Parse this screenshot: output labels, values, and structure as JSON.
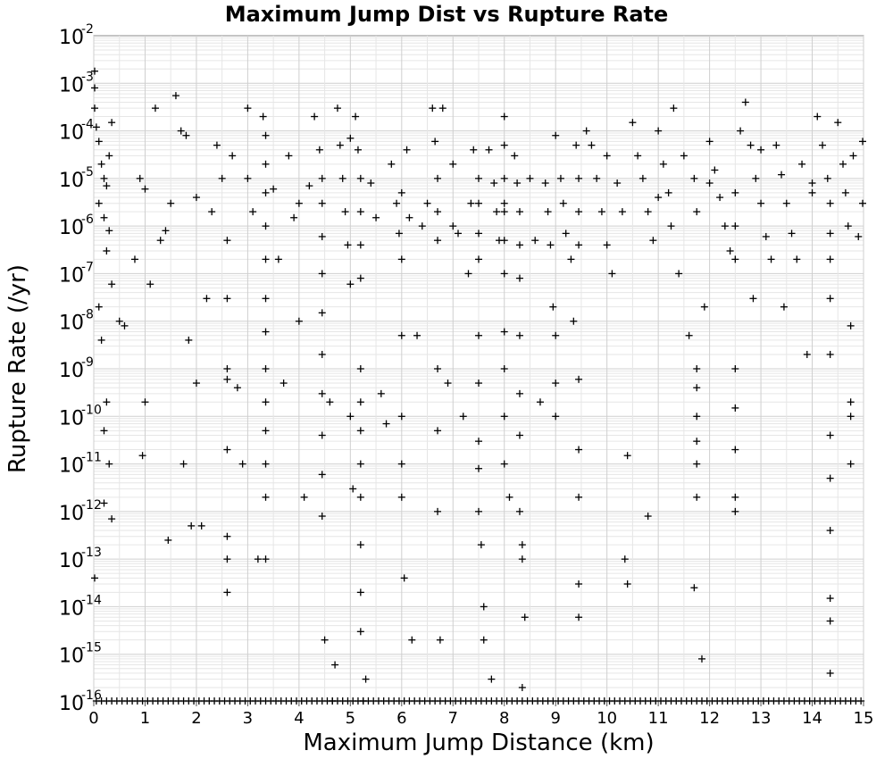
{
  "chart_data": {
    "type": "scatter",
    "title": "Maximum Jump Dist vs Rupture Rate",
    "xlabel": "Maximum Jump Distance (km)",
    "ylabel": "Rupture Rate (/yr)",
    "xlim": [
      0,
      15
    ],
    "ylim": [
      1e-16,
      0.01
    ],
    "y_scale": "log",
    "grid": true,
    "legend": "none",
    "marker": "plus",
    "marker_color": "#000000",
    "x_ticks": [
      "0",
      "1",
      "2",
      "3",
      "4",
      "5",
      "6",
      "7",
      "8",
      "9",
      "10",
      "11",
      "12",
      "13",
      "14",
      "15"
    ],
    "y_ticks": [
      {
        "base": "10",
        "exp": "-2"
      },
      {
        "base": "10",
        "exp": "-3"
      },
      {
        "base": "10",
        "exp": "-4"
      },
      {
        "base": "10",
        "exp": "-5"
      },
      {
        "base": "10",
        "exp": "-6"
      },
      {
        "base": "10",
        "exp": "-7"
      },
      {
        "base": "10",
        "exp": "-8"
      },
      {
        "base": "10",
        "exp": "-9"
      },
      {
        "base": "10",
        "exp": "-10"
      },
      {
        "base": "10",
        "exp": "-11"
      },
      {
        "base": "10",
        "exp": "-12"
      },
      {
        "base": "10",
        "exp": "-13"
      },
      {
        "base": "10",
        "exp": "-14"
      },
      {
        "base": "10",
        "exp": "-15"
      },
      {
        "base": "10",
        "exp": "-16"
      }
    ],
    "points": [
      [
        0.0,
        0.0018
      ],
      [
        0.0,
        0.0008
      ],
      [
        0.0,
        0.0003
      ],
      [
        0.05,
        0.00012
      ],
      [
        0.1,
        6e-05
      ],
      [
        0.15,
        2e-05
      ],
      [
        0.2,
        1e-05
      ],
      [
        0.25,
        7e-06
      ],
      [
        0.3,
        3e-05
      ],
      [
        0.35,
        0.00015
      ],
      [
        0.1,
        3e-06
      ],
      [
        0.2,
        1.5e-06
      ],
      [
        0.3,
        8e-07
      ],
      [
        0.25,
        3e-07
      ],
      [
        0.35,
        6e-08
      ],
      [
        0.1,
        2e-08
      ],
      [
        0.15,
        4e-09
      ],
      [
        0.25,
        2e-10
      ],
      [
        0.2,
        5e-11
      ],
      [
        0.3,
        1e-11
      ],
      [
        0.2,
        1.5e-12
      ],
      [
        0.35,
        7e-13
      ],
      [
        0.0,
        4e-14
      ],
      [
        0.5,
        1e-08
      ],
      [
        0.6,
        8e-09
      ],
      [
        0.8,
        2e-07
      ],
      [
        0.9,
        1e-05
      ],
      [
        1.0,
        2e-10
      ],
      [
        0.95,
        1.5e-11
      ],
      [
        1.1,
        6e-08
      ],
      [
        1.2,
        0.0003
      ],
      [
        1.3,
        5e-07
      ],
      [
        1.4,
        8e-07
      ],
      [
        1.5,
        3e-06
      ],
      [
        1.45,
        2.5e-13
      ],
      [
        1.6,
        0.00055
      ],
      [
        1.7,
        0.0001
      ],
      [
        1.8,
        8e-05
      ],
      [
        1.75,
        1e-11
      ],
      [
        1.85,
        4e-09
      ],
      [
        1.9,
        5e-13
      ],
      [
        2.0,
        5e-10
      ],
      [
        2.1,
        5e-13
      ],
      [
        2.2,
        3e-08
      ],
      [
        2.3,
        2e-06
      ],
      [
        2.4,
        5e-05
      ],
      [
        2.5,
        1e-05
      ],
      [
        2.6,
        5e-07
      ],
      [
        2.6,
        3e-08
      ],
      [
        2.6,
        1e-09
      ],
      [
        2.6,
        6e-10
      ],
      [
        2.6,
        2e-11
      ],
      [
        2.6,
        3e-13
      ],
      [
        2.6,
        1e-13
      ],
      [
        2.6,
        2e-14
      ],
      [
        2.7,
        3e-05
      ],
      [
        2.8,
        4e-10
      ],
      [
        2.9,
        1e-11
      ],
      [
        3.0,
        0.0003
      ],
      [
        3.1,
        2e-06
      ],
      [
        3.2,
        1e-13
      ],
      [
        3.3,
        0.0002
      ],
      [
        3.35,
        8e-05
      ],
      [
        3.35,
        2e-05
      ],
      [
        3.35,
        5e-06
      ],
      [
        3.35,
        1e-06
      ],
      [
        3.35,
        2e-07
      ],
      [
        3.35,
        3e-08
      ],
      [
        3.35,
        6e-09
      ],
      [
        3.35,
        1e-09
      ],
      [
        3.35,
        2e-10
      ],
      [
        3.35,
        5e-11
      ],
      [
        3.35,
        1e-11
      ],
      [
        3.35,
        2e-12
      ],
      [
        3.35,
        1e-13
      ],
      [
        3.5,
        6e-06
      ],
      [
        3.6,
        2e-07
      ],
      [
        3.7,
        5e-10
      ],
      [
        3.8,
        3e-05
      ],
      [
        3.9,
        1.5e-06
      ],
      [
        4.0,
        1e-08
      ],
      [
        4.1,
        2e-12
      ],
      [
        4.2,
        7e-06
      ],
      [
        4.3,
        0.0002
      ],
      [
        4.4,
        4e-05
      ],
      [
        4.45,
        1e-05
      ],
      [
        4.45,
        3e-06
      ],
      [
        4.45,
        6e-07
      ],
      [
        4.45,
        1e-07
      ],
      [
        4.45,
        1.5e-08
      ],
      [
        4.45,
        2e-09
      ],
      [
        4.45,
        3e-10
      ],
      [
        4.45,
        4e-11
      ],
      [
        4.45,
        6e-12
      ],
      [
        4.45,
        8e-13
      ],
      [
        4.5,
        2e-15
      ],
      [
        4.6,
        2e-10
      ],
      [
        4.65,
        1e-16
      ],
      [
        4.7,
        6e-16
      ],
      [
        4.75,
        0.0003
      ],
      [
        4.8,
        5e-05
      ],
      [
        4.85,
        1e-05
      ],
      [
        4.9,
        2e-06
      ],
      [
        4.95,
        4e-07
      ],
      [
        5.0,
        6e-08
      ],
      [
        5.0,
        1e-10
      ],
      [
        5.05,
        3e-12
      ],
      [
        5.1,
        0.0002
      ],
      [
        5.15,
        4e-05
      ],
      [
        5.2,
        1e-05
      ],
      [
        5.2,
        2e-06
      ],
      [
        5.2,
        4e-07
      ],
      [
        5.2,
        8e-08
      ],
      [
        5.2,
        1e-09
      ],
      [
        5.2,
        2e-10
      ],
      [
        5.2,
        5e-11
      ],
      [
        5.2,
        1e-11
      ],
      [
        5.2,
        2e-12
      ],
      [
        5.2,
        2e-13
      ],
      [
        5.2,
        2e-14
      ],
      [
        5.2,
        3e-15
      ],
      [
        5.25,
        1e-16
      ],
      [
        5.3,
        3e-16
      ],
      [
        5.4,
        8e-06
      ],
      [
        5.5,
        1.5e-06
      ],
      [
        5.6,
        3e-10
      ],
      [
        5.7,
        7e-11
      ],
      [
        5.8,
        2e-05
      ],
      [
        5.9,
        3e-06
      ],
      [
        5.95,
        7e-07
      ],
      [
        6.0,
        2e-07
      ],
      [
        6.0,
        5e-09
      ],
      [
        6.0,
        1e-10
      ],
      [
        6.0,
        1e-11
      ],
      [
        6.0,
        2e-12
      ],
      [
        6.05,
        4e-14
      ],
      [
        6.1,
        4e-05
      ],
      [
        6.15,
        1.5e-06
      ],
      [
        6.2,
        2e-15
      ],
      [
        6.3,
        5e-09
      ],
      [
        6.4,
        1e-06
      ],
      [
        6.5,
        3e-06
      ],
      [
        6.6,
        0.0003
      ],
      [
        6.65,
        6e-05
      ],
      [
        6.7,
        1e-05
      ],
      [
        6.7,
        2e-06
      ],
      [
        6.7,
        5e-07
      ],
      [
        6.7,
        1e-09
      ],
      [
        6.7,
        5e-11
      ],
      [
        6.7,
        1e-12
      ],
      [
        6.75,
        2e-15
      ],
      [
        6.8,
        0.0003
      ],
      [
        6.9,
        5e-10
      ],
      [
        7.0,
        2e-05
      ],
      [
        7.1,
        7e-07
      ],
      [
        7.2,
        1e-10
      ],
      [
        7.3,
        1e-07
      ],
      [
        7.35,
        3e-06
      ],
      [
        7.4,
        4e-05
      ],
      [
        7.5,
        1e-05
      ],
      [
        7.5,
        3e-06
      ],
      [
        7.5,
        7e-07
      ],
      [
        7.5,
        2e-07
      ],
      [
        7.5,
        5e-09
      ],
      [
        7.5,
        5e-10
      ],
      [
        7.5,
        3e-11
      ],
      [
        7.5,
        8e-12
      ],
      [
        7.5,
        1e-12
      ],
      [
        7.55,
        2e-13
      ],
      [
        7.6,
        1e-14
      ],
      [
        7.6,
        2e-15
      ],
      [
        7.7,
        4e-05
      ],
      [
        7.75,
        3e-16
      ],
      [
        7.8,
        8e-06
      ],
      [
        7.85,
        2e-06
      ],
      [
        7.9,
        5e-07
      ],
      [
        8.0,
        0.0002
      ],
      [
        8.0,
        5e-05
      ],
      [
        8.0,
        1e-05
      ],
      [
        8.0,
        2e-06
      ],
      [
        8.0,
        5e-07
      ],
      [
        8.0,
        1e-07
      ],
      [
        8.0,
        6e-09
      ],
      [
        8.0,
        1e-09
      ],
      [
        8.0,
        1e-10
      ],
      [
        8.0,
        1e-11
      ],
      [
        8.1,
        2e-12
      ],
      [
        8.2,
        3e-05
      ],
      [
        8.25,
        8e-06
      ],
      [
        8.3,
        2e-06
      ],
      [
        8.3,
        4e-07
      ],
      [
        8.3,
        8e-08
      ],
      [
        8.3,
        5e-09
      ],
      [
        8.3,
        3e-10
      ],
      [
        8.3,
        4e-11
      ],
      [
        8.3,
        1e-12
      ],
      [
        8.35,
        2e-13
      ],
      [
        8.35,
        1e-13
      ],
      [
        8.35,
        2e-16
      ],
      [
        8.4,
        6e-15
      ],
      [
        8.5,
        1e-05
      ],
      [
        8.6,
        5e-07
      ],
      [
        8.7,
        2e-10
      ],
      [
        8.8,
        8e-06
      ],
      [
        8.85,
        2e-06
      ],
      [
        8.9,
        4e-07
      ],
      [
        8.95,
        2e-08
      ],
      [
        9.0,
        5e-09
      ],
      [
        9.0,
        5e-10
      ],
      [
        9.0,
        1e-10
      ],
      [
        9.1,
        1e-05
      ],
      [
        9.15,
        3e-06
      ],
      [
        9.2,
        7e-07
      ],
      [
        9.3,
        2e-07
      ],
      [
        9.35,
        1e-08
      ],
      [
        9.4,
        5e-05
      ],
      [
        9.45,
        1e-05
      ],
      [
        9.45,
        2e-06
      ],
      [
        9.45,
        4e-07
      ],
      [
        9.45,
        6e-10
      ],
      [
        9.45,
        2e-11
      ],
      [
        9.45,
        2e-12
      ],
      [
        9.45,
        3e-14
      ],
      [
        9.45,
        6e-15
      ],
      [
        9.6,
        0.0001
      ],
      [
        9.7,
        5e-05
      ],
      [
        9.8,
        1e-05
      ],
      [
        9.9,
        2e-06
      ],
      [
        10.0,
        4e-07
      ],
      [
        10.1,
        1e-07
      ],
      [
        10.2,
        8e-06
      ],
      [
        10.3,
        2e-06
      ],
      [
        10.35,
        1e-13
      ],
      [
        10.4,
        3e-14
      ],
      [
        10.4,
        1.5e-11
      ],
      [
        10.5,
        0.00015
      ],
      [
        10.6,
        3e-05
      ],
      [
        10.7,
        1e-05
      ],
      [
        10.8,
        2e-06
      ],
      [
        10.9,
        5e-07
      ],
      [
        10.8,
        8e-13
      ],
      [
        11.0,
        0.0001
      ],
      [
        11.1,
        2e-05
      ],
      [
        11.2,
        5e-06
      ],
      [
        11.25,
        1e-06
      ],
      [
        11.3,
        0.0003
      ],
      [
        11.4,
        1e-07
      ],
      [
        11.5,
        3e-05
      ],
      [
        11.6,
        5e-09
      ],
      [
        11.7,
        1e-05
      ],
      [
        11.75,
        2e-06
      ],
      [
        11.75,
        1e-09
      ],
      [
        11.75,
        4e-10
      ],
      [
        11.75,
        1e-10
      ],
      [
        11.75,
        3e-11
      ],
      [
        11.75,
        1e-11
      ],
      [
        11.75,
        2e-12
      ],
      [
        11.7,
        2.5e-14
      ],
      [
        11.85,
        8e-16
      ],
      [
        11.9,
        2e-08
      ],
      [
        12.0,
        6e-05
      ],
      [
        12.1,
        1.5e-05
      ],
      [
        12.2,
        4e-06
      ],
      [
        12.3,
        1e-06
      ],
      [
        12.4,
        3e-07
      ],
      [
        12.5,
        5e-06
      ],
      [
        12.5,
        1e-06
      ],
      [
        12.5,
        2e-07
      ],
      [
        12.5,
        1e-09
      ],
      [
        12.5,
        1.5e-10
      ],
      [
        12.5,
        2e-11
      ],
      [
        12.5,
        2e-12
      ],
      [
        12.5,
        1e-12
      ],
      [
        12.6,
        0.0001
      ],
      [
        12.7,
        0.0004
      ],
      [
        12.8,
        5e-05
      ],
      [
        12.85,
        3e-08
      ],
      [
        12.9,
        1e-05
      ],
      [
        13.0,
        3e-06
      ],
      [
        13.1,
        6e-07
      ],
      [
        13.2,
        2e-07
      ],
      [
        13.3,
        5e-05
      ],
      [
        13.4,
        1.2e-05
      ],
      [
        13.45,
        2e-08
      ],
      [
        13.5,
        3e-06
      ],
      [
        13.6,
        7e-07
      ],
      [
        13.7,
        2e-07
      ],
      [
        13.8,
        2e-05
      ],
      [
        13.9,
        2e-09
      ],
      [
        14.0,
        5e-06
      ],
      [
        14.1,
        0.0002
      ],
      [
        14.2,
        5e-05
      ],
      [
        14.3,
        1e-05
      ],
      [
        14.35,
        3e-06
      ],
      [
        14.35,
        7e-07
      ],
      [
        14.35,
        2e-07
      ],
      [
        14.35,
        3e-08
      ],
      [
        14.35,
        2e-09
      ],
      [
        14.35,
        4e-11
      ],
      [
        14.35,
        5e-12
      ],
      [
        14.35,
        4e-13
      ],
      [
        14.35,
        1.5e-14
      ],
      [
        14.35,
        5e-15
      ],
      [
        14.35,
        4e-16
      ],
      [
        14.5,
        0.00015
      ],
      [
        14.6,
        2e-05
      ],
      [
        14.65,
        5e-06
      ],
      [
        14.7,
        1e-06
      ],
      [
        14.75,
        8e-09
      ],
      [
        14.75,
        2e-10
      ],
      [
        14.75,
        1e-10
      ],
      [
        14.75,
        1e-11
      ],
      [
        14.8,
        3e-05
      ],
      [
        14.9,
        6e-07
      ],
      [
        15.0,
        6e-05
      ],
      [
        15.0,
        3e-06
      ],
      [
        14.0,
        8e-06
      ],
      [
        13.0,
        4e-05
      ],
      [
        12.0,
        8e-06
      ],
      [
        11.0,
        4e-06
      ],
      [
        10.0,
        3e-05
      ],
      [
        9.0,
        8e-05
      ],
      [
        8.0,
        3e-06
      ],
      [
        7.0,
        1e-06
      ],
      [
        6.0,
        5e-06
      ],
      [
        5.0,
        7e-05
      ],
      [
        4.0,
        3e-06
      ],
      [
        3.0,
        1e-05
      ],
      [
        2.0,
        4e-06
      ],
      [
        1.0,
        6e-06
      ]
    ],
    "floor_x": [
      0.05,
      0.15,
      0.25,
      0.35,
      0.45,
      0.55,
      0.65,
      0.75,
      0.85,
      0.95,
      1.05,
      1.15,
      1.25,
      1.35,
      1.45,
      1.55,
      1.65,
      1.75,
      1.85,
      1.95,
      2.05,
      2.15,
      2.25,
      2.35,
      2.45,
      2.55,
      2.65,
      2.75,
      2.85,
      2.95,
      3.05,
      3.15,
      3.25,
      3.35,
      3.45,
      3.55,
      3.65,
      3.75,
      3.85,
      3.95,
      4.05,
      4.15,
      4.25,
      4.35,
      4.45,
      4.55,
      4.65,
      4.75,
      4.85,
      4.95,
      5.05,
      5.15,
      5.25,
      5.35,
      5.45,
      5.55,
      5.65,
      5.75,
      5.85,
      5.95,
      6.05,
      6.15,
      6.25,
      6.35,
      6.45,
      6.55,
      6.65,
      6.75,
      6.85,
      6.95,
      7.05,
      7.15,
      7.25,
      7.35,
      7.45,
      7.55,
      7.65,
      7.75,
      7.85,
      7.95,
      8.05,
      8.15,
      8.25,
      8.35,
      8.45,
      8.55,
      8.65,
      8.75,
      8.85,
      8.95,
      9.05,
      9.15,
      9.25,
      9.35,
      9.45,
      9.55,
      9.65,
      9.75,
      9.85,
      9.95,
      10.05,
      10.15,
      10.25,
      10.35,
      10.45,
      10.55,
      10.65,
      10.75,
      10.85,
      10.95,
      11.05,
      11.15,
      11.25,
      11.35,
      11.45,
      11.55,
      11.65,
      11.75,
      11.85,
      11.95,
      12.05,
      12.15,
      12.25,
      12.35,
      12.45,
      12.55,
      12.65,
      12.75,
      12.85,
      12.95,
      13.05,
      13.15,
      13.25,
      13.35,
      13.45,
      13.55,
      13.65,
      13.75,
      13.85,
      13.95,
      14.05,
      14.15,
      14.25,
      14.35,
      14.45,
      14.55,
      14.65,
      14.75,
      14.85,
      14.95
    ]
  }
}
